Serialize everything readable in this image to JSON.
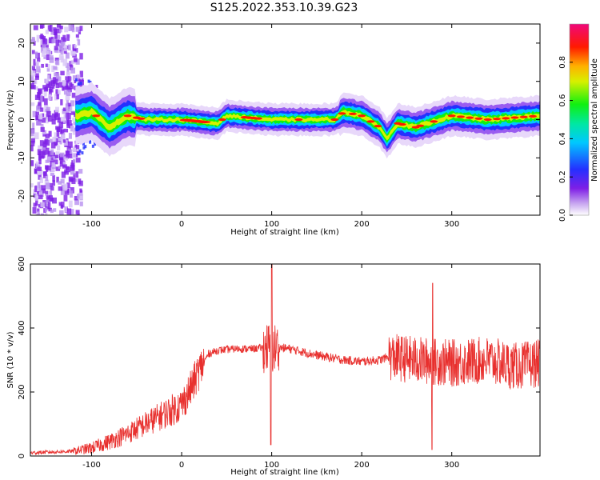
{
  "figure": {
    "title": "S125.2022.353.10.39.G23"
  },
  "chart_data": [
    {
      "type": "heatmap",
      "xlabel": "Height of straight line (km)",
      "ylabel": "Frequency (Hz)",
      "xlim": [
        -168,
        398
      ],
      "ylim": [
        -25,
        25
      ],
      "xticks": [
        -100,
        0,
        100,
        200,
        300
      ],
      "yticks": [
        -20,
        -10,
        0,
        10,
        20
      ],
      "colorbar": {
        "label": "Normalized spectral amplitude",
        "range": [
          0,
          1
        ],
        "ticks": [
          "0.0",
          "0.2",
          "0.4",
          "0.6",
          "0.8"
        ],
        "colormap": "rainbow (purple-blue-cyan-green-yellow-red-magenta)"
      },
      "ridge_frequency_hz": {
        "x": [
          -115,
          -100,
          -80,
          -60,
          -40,
          0,
          40,
          50,
          100,
          170,
          180,
          200,
          220,
          228,
          240,
          260,
          300,
          340,
          398
        ],
        "y": [
          1,
          2,
          -2,
          1,
          0,
          0,
          -1,
          1,
          0,
          0,
          2,
          1,
          -2,
          -5,
          -1,
          -2,
          1,
          0,
          1
        ]
      }
    },
    {
      "type": "line",
      "xlabel": "Height of straight line (km)",
      "ylabel": "SNR (10 * v/v)",
      "xlim": [
        -168,
        398
      ],
      "ylim": [
        0,
        600
      ],
      "xticks": [
        -100,
        0,
        100,
        200,
        300
      ],
      "yticks": [
        0,
        200,
        400,
        600
      ],
      "color": "#e8302e",
      "series": [
        {
          "x": [
            -168,
            -120,
            -100,
            -80,
            -60,
            -40,
            -20,
            0,
            10,
            20,
            30,
            40,
            60,
            80,
            95,
            100,
            105,
            120,
            150,
            180,
            200,
            220,
            230,
            260,
            300,
            340,
            370,
            398
          ],
          "y": [
            10,
            15,
            25,
            45,
            70,
            100,
            130,
            160,
            210,
            270,
            320,
            330,
            335,
            335,
            340,
            330,
            340,
            335,
            315,
            300,
            295,
            300,
            310,
            300,
            290,
            300,
            280,
            290
          ]
        }
      ]
    }
  ]
}
